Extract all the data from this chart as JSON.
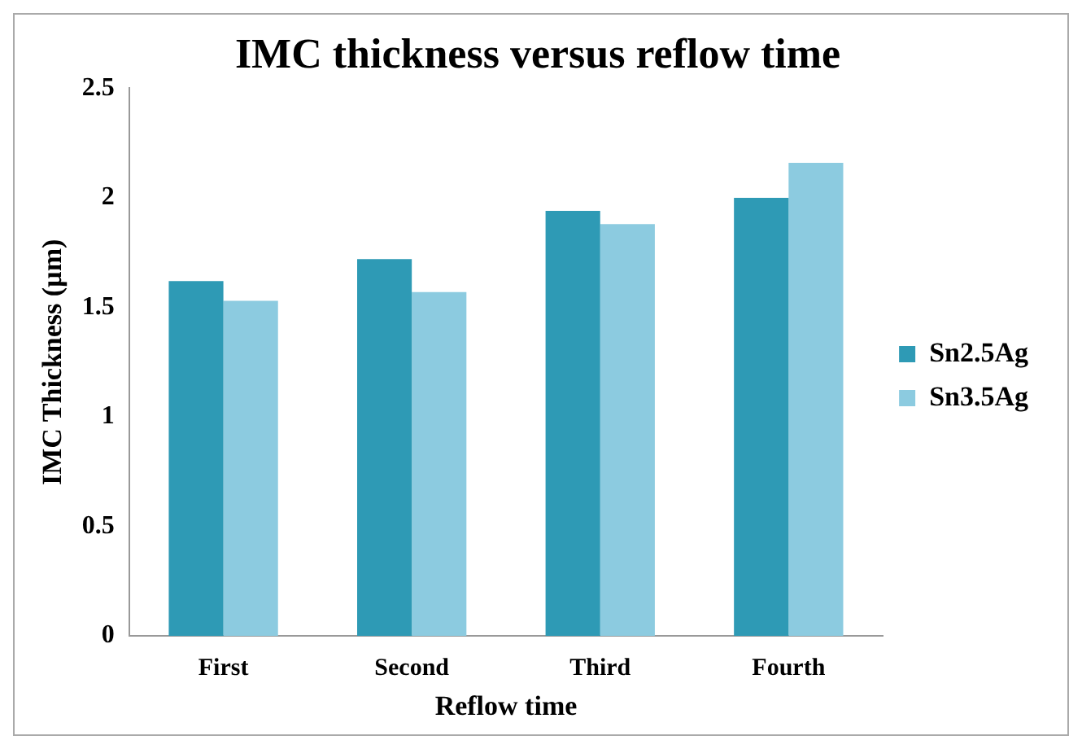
{
  "chart_data": {
    "type": "bar",
    "title": "IMC thickness versus reflow time",
    "xlabel": "Reflow time",
    "ylabel": "IMC Thickness (µm)",
    "categories": [
      "First",
      "Second",
      "Third",
      "Fourth"
    ],
    "series": [
      {
        "name": "Sn2.5Ag",
        "color": "#2e9ab5",
        "values": [
          1.62,
          1.72,
          1.94,
          2.0
        ]
      },
      {
        "name": "Sn3.5Ag",
        "color": "#8ccbe0",
        "values": [
          1.53,
          1.57,
          1.88,
          2.16
        ]
      }
    ],
    "ylim": [
      0,
      2.5
    ],
    "yticks": [
      0,
      0.5,
      1,
      1.5,
      2,
      2.5
    ],
    "grid": false,
    "legend": "right"
  }
}
